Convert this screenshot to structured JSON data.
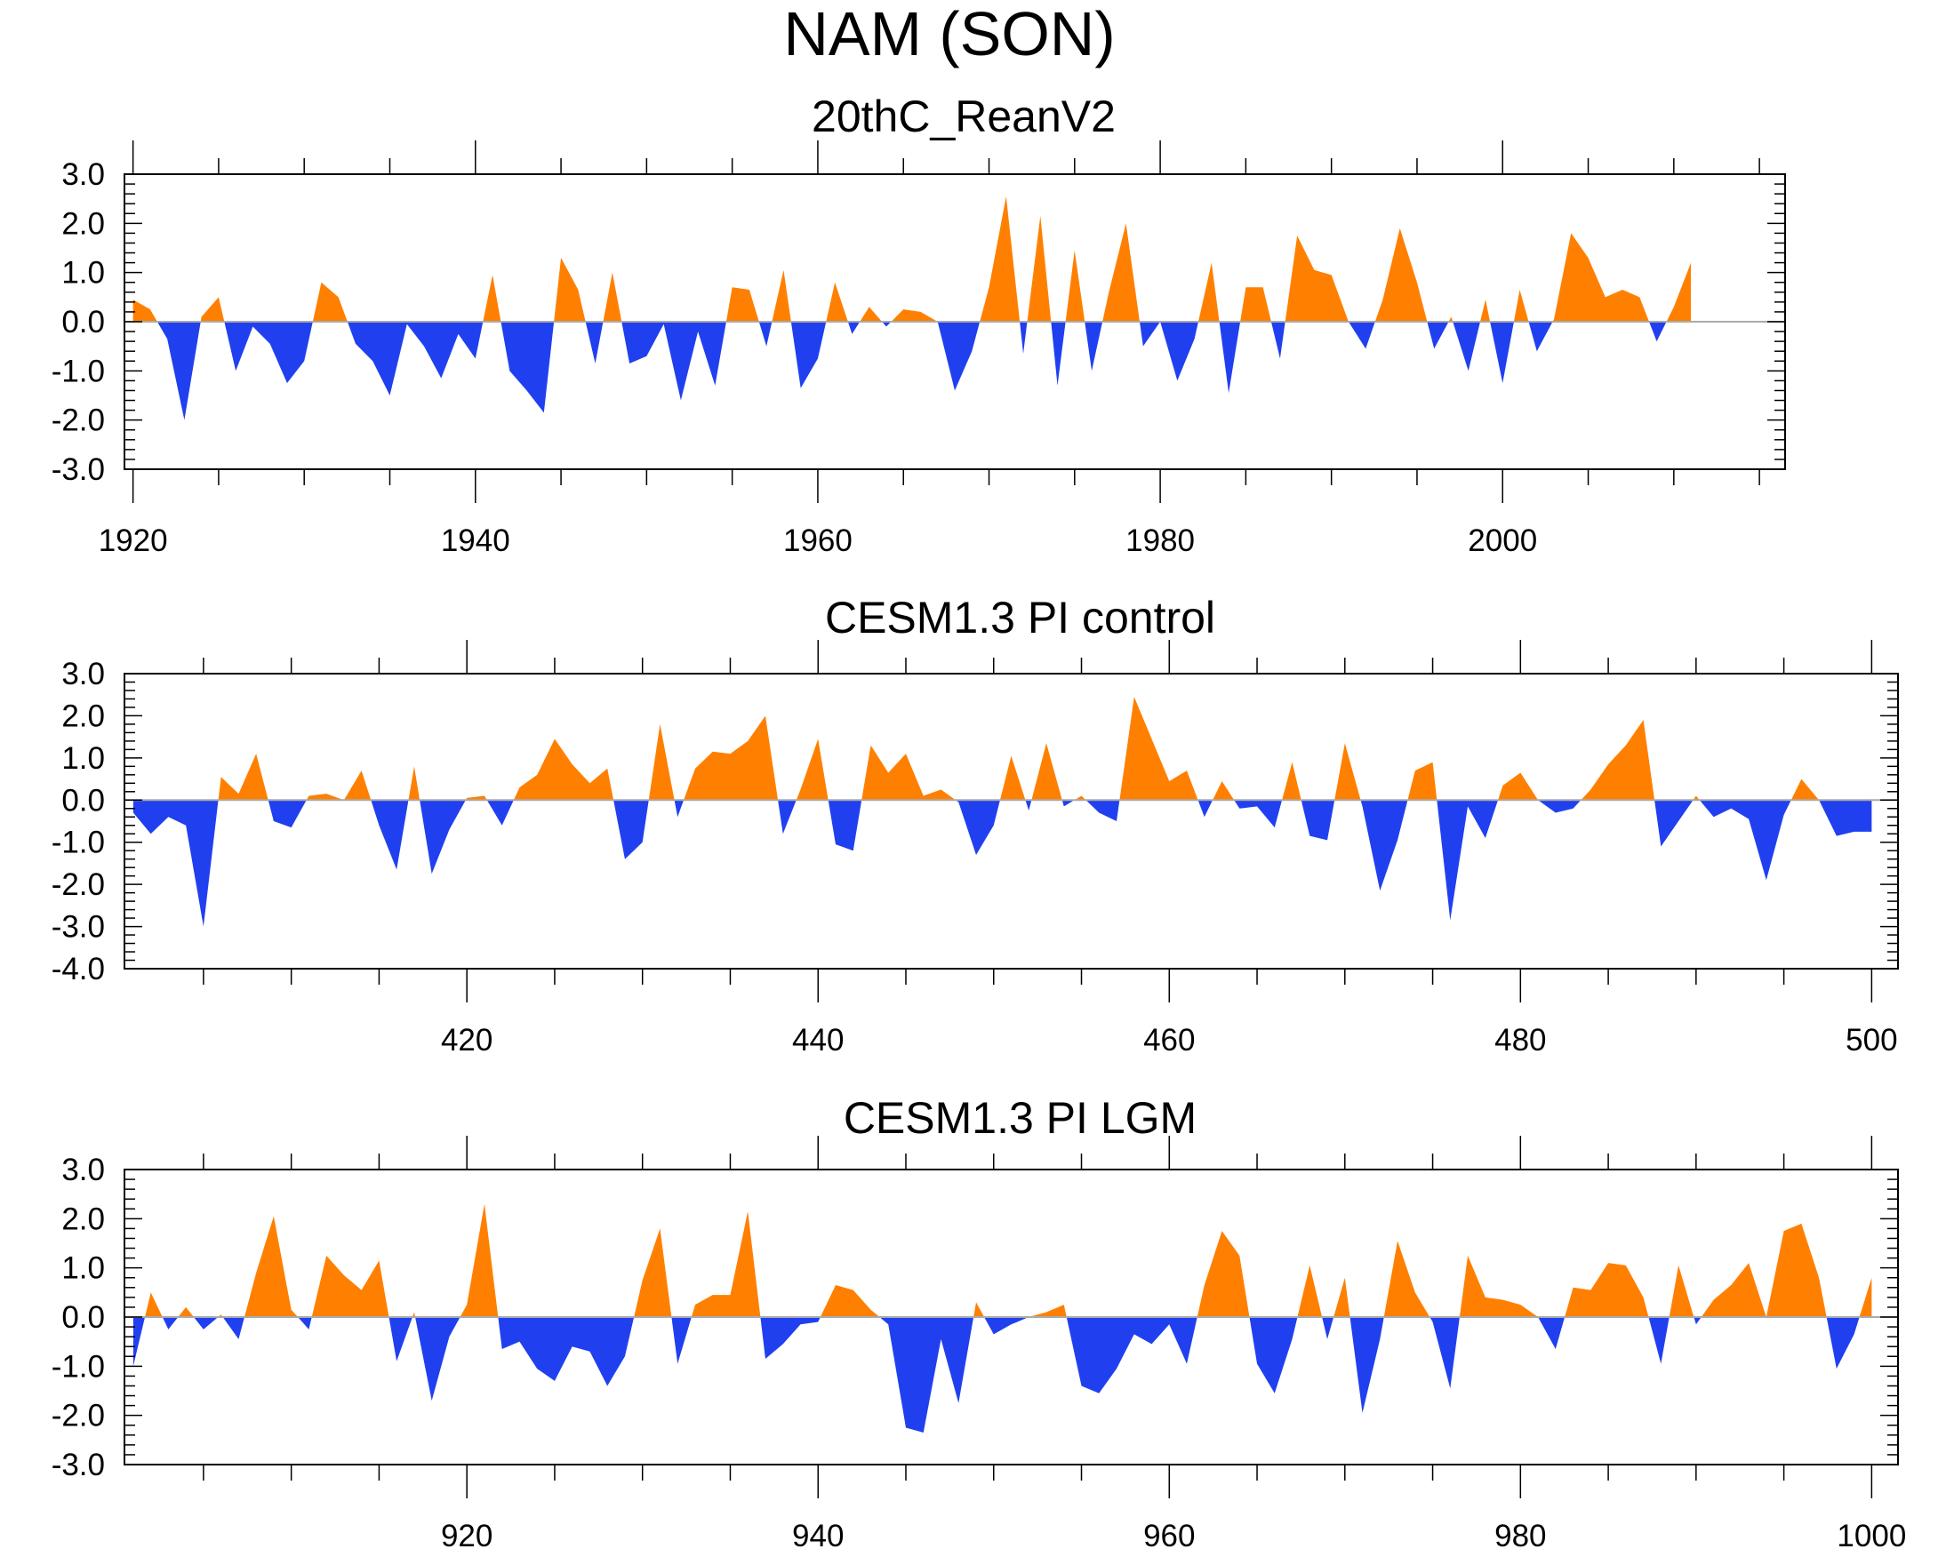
{
  "title": "NAM (SON)",
  "colors": {
    "positive": "#ff8000",
    "negative": "#2040f0",
    "axis": "#000000",
    "zero_line": "#aaaaaa"
  },
  "chart_data": [
    {
      "type": "area",
      "title": "20thC_ReanV2",
      "xlabel": "",
      "ylabel": "",
      "xlim": [
        1919.5,
        2016.5
      ],
      "ylim": [
        -3.0,
        3.0
      ],
      "x_ticks": [
        1920,
        1940,
        1960,
        1980,
        2000
      ],
      "x_tick_labels": [
        "1920",
        "1940",
        "1960",
        "1980",
        "2000"
      ],
      "y_ticks": [
        -3.0,
        -2.0,
        -1.0,
        0.0,
        1.0,
        2.0,
        3.0
      ],
      "y_tick_labels": [
        "-3.0",
        "-2.0",
        "-1.0",
        "0.0",
        "1.0",
        "2.0",
        "3.0"
      ],
      "x_start": 1920,
      "values": [
        0.45,
        0.25,
        -0.35,
        -2.0,
        0.1,
        0.5,
        -1.0,
        -0.1,
        -0.45,
        -1.25,
        -0.8,
        0.8,
        0.5,
        -0.45,
        -0.8,
        -1.5,
        -0.05,
        -0.5,
        -1.15,
        -0.25,
        -0.75,
        0.95,
        -1.0,
        -1.4,
        -1.85,
        1.3,
        0.65,
        -0.85,
        1.0,
        -0.85,
        -0.7,
        -0.05,
        -1.6,
        -0.2,
        -1.3,
        0.7,
        0.65,
        -0.5,
        1.05,
        -1.35,
        -0.75,
        0.8,
        -0.25,
        0.3,
        -0.1,
        0.25,
        0.2,
        0.0,
        -1.4,
        -0.6,
        0.7,
        2.55,
        -0.65,
        2.15,
        -1.3,
        1.45,
        -1.0,
        0.6,
        2.0,
        -0.5,
        0.0,
        -1.2,
        -0.35,
        1.2,
        -1.45,
        0.7,
        0.7,
        -0.75,
        1.75,
        1.05,
        0.95,
        0.0,
        -0.55,
        0.45,
        1.9,
        0.8,
        -0.55,
        0.1,
        -1.0,
        0.45,
        -1.25,
        0.65,
        -0.6,
        0.05,
        1.8,
        1.3,
        0.5,
        0.65,
        0.5,
        -0.4,
        0.3,
        1.2
      ]
    },
    {
      "type": "area",
      "title": "CESM1.3 PI control",
      "xlabel": "",
      "ylabel": "",
      "xlim": [
        400.5,
        501.5
      ],
      "ylim": [
        -4.0,
        3.0
      ],
      "x_ticks": [
        420,
        440,
        460,
        480,
        500
      ],
      "x_tick_labels": [
        "420",
        "440",
        "460",
        "480",
        "500"
      ],
      "y_ticks": [
        -4.0,
        -3.0,
        -2.0,
        -1.0,
        0.0,
        1.0,
        2.0,
        3.0
      ],
      "y_tick_labels": [
        "-4.0",
        "-3.0",
        "-2.0",
        "-1.0",
        "0.0",
        "1.0",
        "2.0",
        "3.0"
      ],
      "x_start": 401,
      "values": [
        -0.3,
        -0.8,
        -0.4,
        -0.6,
        -3.0,
        0.55,
        0.15,
        1.1,
        -0.5,
        -0.65,
        0.1,
        0.15,
        0.0,
        0.7,
        -0.6,
        -1.65,
        0.8,
        -1.75,
        -0.7,
        0.05,
        0.1,
        -0.6,
        0.3,
        0.6,
        1.45,
        0.85,
        0.4,
        0.75,
        -1.4,
        -1.0,
        1.8,
        -0.4,
        0.75,
        1.15,
        1.1,
        1.4,
        2.0,
        -0.8,
        0.25,
        1.45,
        -1.05,
        -1.2,
        1.3,
        0.65,
        1.1,
        0.1,
        0.25,
        -0.05,
        -1.3,
        -0.6,
        1.05,
        -0.25,
        1.35,
        -0.15,
        0.1,
        -0.3,
        -0.5,
        2.45,
        1.45,
        0.45,
        0.7,
        -0.4,
        0.45,
        -0.2,
        -0.15,
        -0.65,
        0.9,
        -0.85,
        -0.95,
        1.35,
        -0.15,
        -2.15,
        -0.95,
        0.7,
        0.9,
        -2.85,
        -0.15,
        -0.9,
        0.35,
        0.65,
        0.0,
        -0.3,
        -0.2,
        0.25,
        0.85,
        1.3,
        1.9,
        -1.1,
        -0.5,
        0.1,
        -0.4,
        -0.2,
        -0.45,
        -1.9,
        -0.35,
        0.5,
        0.0,
        -0.85,
        -0.75,
        -0.75
      ]
    },
    {
      "type": "area",
      "title": "CESM1.3 PI LGM",
      "xlabel": "",
      "ylabel": "",
      "xlim": [
        900.5,
        1001.5
      ],
      "ylim": [
        -3.0,
        3.0
      ],
      "x_ticks": [
        920,
        940,
        960,
        980,
        1000
      ],
      "x_tick_labels": [
        "920",
        "940",
        "960",
        "980",
        "1000"
      ],
      "y_ticks": [
        -3.0,
        -2.0,
        -1.0,
        0.0,
        1.0,
        2.0,
        3.0
      ],
      "y_tick_labels": [
        "-3.0",
        "-2.0",
        "-1.0",
        "0.0",
        "1.0",
        "2.0",
        "3.0"
      ],
      "x_start": 901,
      "values": [
        -1.0,
        0.5,
        -0.25,
        0.2,
        -0.25,
        0.05,
        -0.45,
        0.9,
        2.05,
        0.15,
        -0.25,
        1.25,
        0.85,
        0.55,
        1.15,
        -0.9,
        0.1,
        -1.7,
        -0.4,
        0.25,
        2.3,
        -0.65,
        -0.5,
        -1.05,
        -1.3,
        -0.6,
        -0.7,
        -1.4,
        -0.8,
        0.75,
        1.8,
        -0.95,
        0.25,
        0.45,
        0.45,
        2.15,
        -0.85,
        -0.55,
        -0.15,
        -0.1,
        0.65,
        0.55,
        0.15,
        -0.15,
        -2.25,
        -2.35,
        -0.45,
        -1.75,
        0.3,
        -0.35,
        -0.15,
        0.0,
        0.1,
        0.25,
        -1.4,
        -1.55,
        -1.05,
        -0.35,
        -0.55,
        -0.15,
        -0.95,
        0.65,
        1.75,
        1.25,
        -0.95,
        -1.55,
        -0.45,
        1.05,
        -0.45,
        0.8,
        -1.95,
        -0.45,
        1.55,
        0.5,
        -0.1,
        -1.45,
        1.25,
        0.4,
        0.35,
        0.25,
        0.0,
        -0.65,
        0.6,
        0.55,
        1.1,
        1.05,
        0.4,
        -0.95,
        1.05,
        -0.15,
        0.35,
        0.65,
        1.1,
        0.0,
        1.75,
        1.9,
        0.8,
        -1.05,
        -0.35,
        0.8
      ]
    }
  ]
}
